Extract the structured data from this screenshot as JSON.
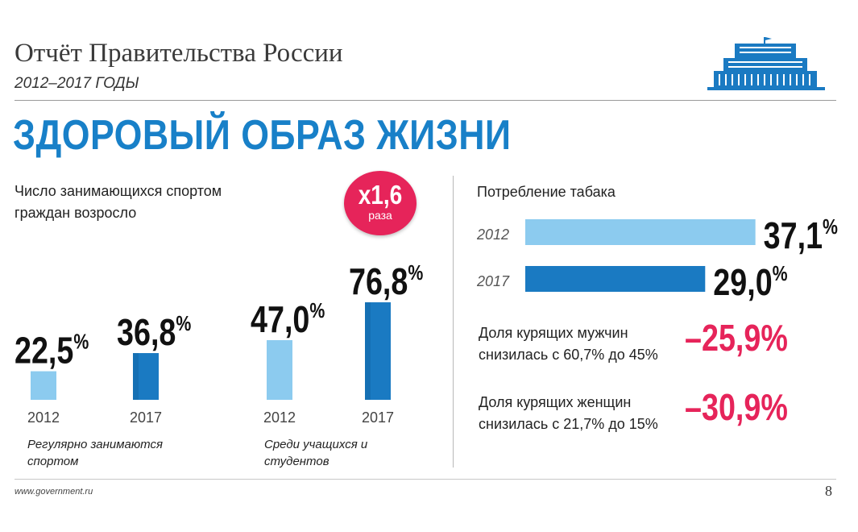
{
  "header": {
    "title": "Отчёт Правительства России",
    "years": "2012–2017 ГОДЫ"
  },
  "main_title": "ЗДОРОВЫЙ ОБРАЗ ЖИЗНИ",
  "sports": {
    "heading": "Число занимающихся спортом граждан возросло",
    "badge_value": "x1,6",
    "badge_unit": "раза"
  },
  "tobacco": {
    "heading": "Потребление табака",
    "men_text": "Доля курящих мужчин снизилась с 60,7% до 45%",
    "men_value": "–25,9%",
    "women_text": "Доля курящих женщин снизилась с 21,7% до 15%",
    "women_value": "–30,9%"
  },
  "footer": {
    "website": "www.government.ru",
    "page": "8"
  },
  "colors": {
    "accent_blue": "#1880c8",
    "light_blue": "#8ccbef",
    "dark_blue": "#1a7ac2",
    "magenta": "#e6245a"
  },
  "chart_data": [
    {
      "type": "bar",
      "categories": [
        "2012",
        "2017"
      ],
      "groups": [
        {
          "caption": "Регулярно занимаются спортом",
          "values": [
            22.5,
            36.8
          ],
          "labels": [
            "22,5",
            "36,8"
          ]
        },
        {
          "caption": "Среди учащихся и студентов",
          "values": [
            47.0,
            76.8
          ],
          "labels": [
            "47,0",
            "76,8"
          ]
        }
      ],
      "unit": "%"
    },
    {
      "type": "bar",
      "orientation": "horizontal",
      "categories": [
        "2012",
        "2017"
      ],
      "values": [
        37.1,
        29.0
      ],
      "labels": [
        "37,1",
        "29,0"
      ],
      "unit": "%"
    }
  ]
}
